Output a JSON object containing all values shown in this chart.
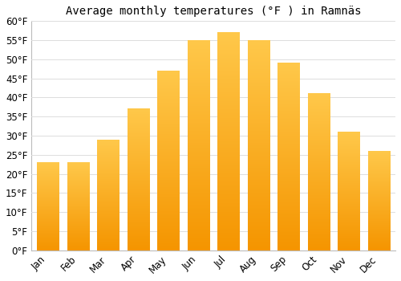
{
  "title": "Average monthly temperatures (°F ) in Ramnäs",
  "months": [
    "Jan",
    "Feb",
    "Mar",
    "Apr",
    "May",
    "Jun",
    "Jul",
    "Aug",
    "Sep",
    "Oct",
    "Nov",
    "Dec"
  ],
  "values": [
    23,
    23,
    29,
    37,
    47,
    55,
    57,
    55,
    49,
    41,
    31,
    26
  ],
  "ylim": [
    0,
    60
  ],
  "yticks": [
    0,
    5,
    10,
    15,
    20,
    25,
    30,
    35,
    40,
    45,
    50,
    55,
    60
  ],
  "ytick_labels": [
    "0°F",
    "5°F",
    "10°F",
    "15°F",
    "20°F",
    "25°F",
    "30°F",
    "35°F",
    "40°F",
    "45°F",
    "50°F",
    "55°F",
    "60°F"
  ],
  "bar_color_light": "#FFC84A",
  "bar_color_dark": "#F59500",
  "background_color": "#ffffff",
  "plot_bg_color": "#ffffff",
  "grid_color": "#dddddd",
  "title_fontsize": 10,
  "tick_fontsize": 8.5,
  "bar_width": 0.72
}
